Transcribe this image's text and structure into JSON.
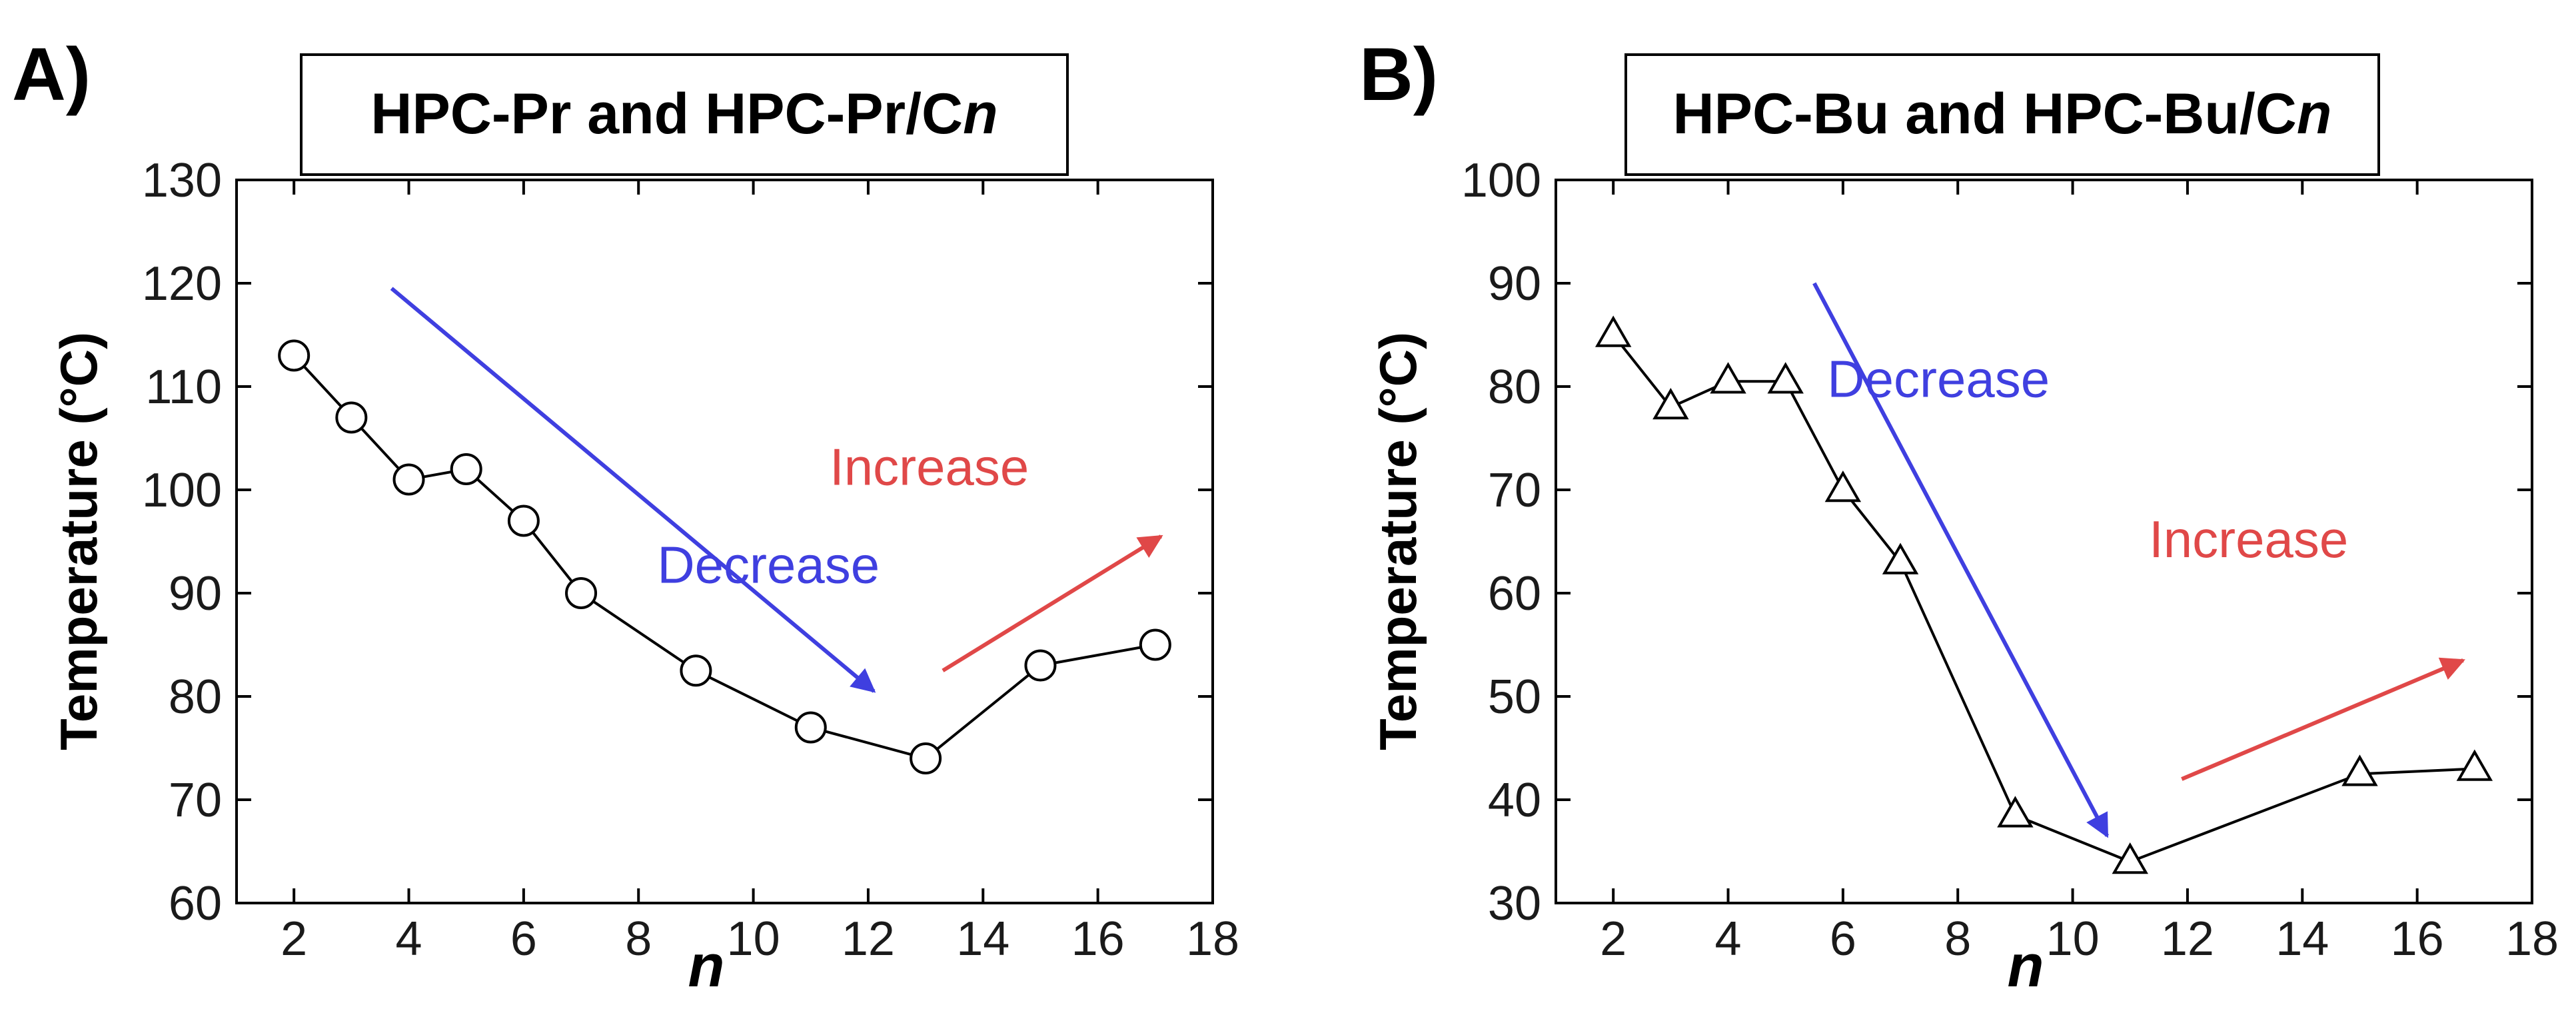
{
  "chart_data": [
    {
      "type": "line",
      "panel_label": "A)",
      "title": "HPC-Pr and HPC-Pr/C",
      "title_suffix": "n",
      "xlabel": "n",
      "ylabel": "Temperature (°C)",
      "xlim": [
        1,
        18
      ],
      "ylim": [
        60,
        130
      ],
      "xticks": [
        2,
        4,
        6,
        8,
        10,
        12,
        14,
        16,
        18
      ],
      "yticks": [
        60,
        70,
        80,
        90,
        100,
        110,
        120,
        130
      ],
      "grid": false,
      "marker": "circle",
      "series": [
        {
          "name": "HPC-Pr/Cn",
          "x": [
            2,
            3,
            4,
            5,
            6,
            7,
            9,
            11,
            13,
            15,
            17
          ],
          "y": [
            113,
            107,
            101,
            102,
            97,
            90,
            82.5,
            77,
            74,
            83,
            85
          ]
        }
      ],
      "annotations": [
        {
          "text": "Decrease",
          "color": "#3f3fe0",
          "x": 12.2,
          "y": 91,
          "arrow_from": [
            3.7,
            119.5
          ],
          "arrow_to": [
            12.1,
            80.5
          ]
        },
        {
          "text": "Increase",
          "color": "#e04848",
          "x": 14.8,
          "y": 100.5,
          "arrow_from": [
            13.3,
            82.5
          ],
          "arrow_to": [
            17.1,
            95.5
          ]
        }
      ]
    },
    {
      "type": "line",
      "panel_label": "B)",
      "title": "HPC-Bu and HPC-Bu/C",
      "title_suffix": "n",
      "xlabel": "n",
      "ylabel": "Temperature (°C)",
      "xlim": [
        1,
        18
      ],
      "ylim": [
        30,
        100
      ],
      "xticks": [
        2,
        4,
        6,
        8,
        10,
        12,
        14,
        16,
        18
      ],
      "yticks": [
        30,
        40,
        50,
        60,
        70,
        80,
        90,
        100
      ],
      "grid": false,
      "marker": "triangle",
      "series": [
        {
          "name": "HPC-Bu/Cn",
          "x": [
            2,
            3,
            4,
            5,
            6,
            7,
            9,
            11,
            15,
            17
          ],
          "y": [
            85,
            78,
            80.5,
            80.5,
            70,
            63,
            38.5,
            34,
            42.5,
            43
          ]
        }
      ],
      "annotations": [
        {
          "text": "Decrease",
          "color": "#3f3fe0",
          "x": 9.6,
          "y": 79,
          "arrow_from": [
            5.5,
            90
          ],
          "arrow_to": [
            10.6,
            36.5
          ]
        },
        {
          "text": "Increase",
          "color": "#e04848",
          "x": 14.8,
          "y": 63.5,
          "arrow_from": [
            11.9,
            42
          ],
          "arrow_to": [
            16.8,
            53.5
          ]
        }
      ]
    }
  ]
}
